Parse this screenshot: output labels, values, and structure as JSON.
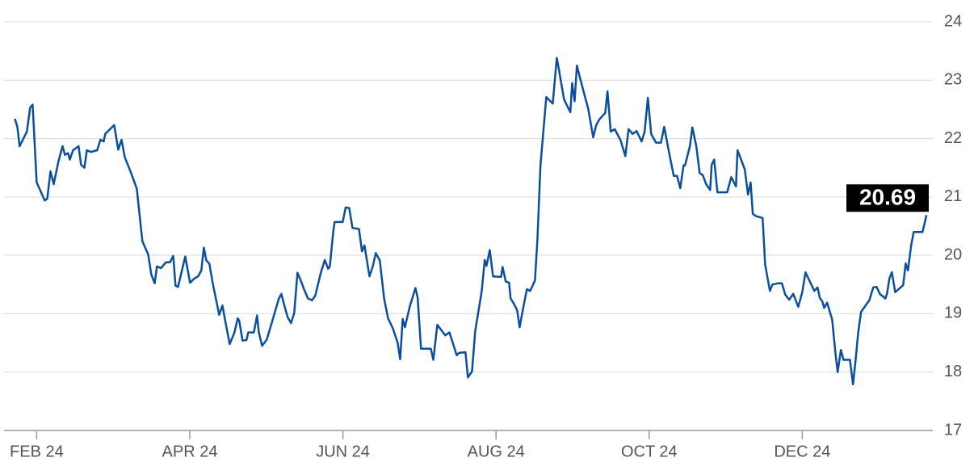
{
  "chart_data": {
    "type": "line",
    "x": [
      -8.7,
      -7.7,
      -6.8,
      -3.9,
      -2.6,
      -1.6,
      0,
      3.2,
      4.2,
      5.5,
      6.8,
      8.7,
      10.3,
      11.3,
      12.5,
      13.2,
      14.5,
      16.7,
      17.7,
      19,
      20,
      21.6,
      24.1,
      25.4,
      26.7,
      27.3,
      30.9,
      32.5,
      33.8,
      35.1,
      37.6,
      39.9,
      42.1,
      44.4,
      45.7,
      47,
      47.9,
      49.5,
      51.5,
      53.1,
      54.4,
      55.3,
      56.3,
      59.2,
      61.1,
      62.7,
      64.3,
      65.6,
      66.6,
      67.6,
      68.8,
      70.1,
      72.7,
      74,
      75.3,
      76.9,
      78.8,
      80.1,
      80.7,
      82,
      83.6,
      84.3,
      86.5,
      87.8,
      88.5,
      89.8,
      91.7,
      94.3,
      96.5,
      97.5,
      98.8,
      100,
      101.3,
      102.6,
      103.9,
      105.2,
      106.5,
      108.1,
      109.7,
      111,
      113.2,
      114.8,
      116.1,
      116.8,
      118.1,
      118.7,
      121.9,
      123.1,
      124.5,
      125.8,
      128.4,
      129.6,
      130.6,
      132.6,
      133.9,
      135.1,
      136.7,
      138.4,
      140,
      141.9,
      143.8,
      144.8,
      145.8,
      146.7,
      148.6,
      150.9,
      151.8,
      153.1,
      155.1,
      157,
      158,
      159.6,
      161.2,
      162.8,
      164.4,
      165.7,
      167.3,
      168.3,
      170.8,
      171.8,
      173.4,
      174.7,
      177.3,
      178.5,
      179.2,
      180.5,
      181.8,
      185,
      185.6,
      186.9,
      188.2,
      188.8,
      190.1,
      191.4,
      192.4,
      194,
      195.3,
      196.6,
      198.5,
      199.5,
      200.7,
      203,
      205.6,
      207.2,
      207.8,
      208.8,
      210.1,
      212.6,
      213.3,
      214.3,
      215.2,
      216.5,
      219.7,
      221.7,
      222.9,
      224.2,
      226.5,
      227.4,
      228.7,
      230.3,
      232.6,
      234.5,
      235.8,
      237.4,
      239,
      241,
      242.2,
      243.5,
      244.8,
      246.7,
      248.7,
      250,
      251.9,
      253.8,
      255.1,
      256.4,
      257.7,
      258.3,
      260.3,
      261.2,
      262.8,
      264.1,
      265.4,
      266.7,
      268.3,
      268.9,
      269.9,
      271.2,
      273.8,
      275.1,
      276.7,
      278.6,
      279.2,
      280.8,
      282.1,
      283.4,
      284.4,
      285.3,
      286.6,
      289.2,
      290.2,
      292.1,
      293.1,
      295.3,
      296.9,
      298.2,
      299.8,
      301.4,
      303.4,
      305,
      306.3,
      307.9,
      309.8,
      311.1,
      312,
      313,
      313.7,
      314.9,
      316.9,
      318.2,
      319.1,
      320.4,
      321.4,
      324,
      325.2,
      326.2,
      327.2,
      328.4,
      331.7,
      333.3,
      334.6,
      335.9,
      338.1,
      338.8,
      339.7,
      340.7,
      342,
      344.2,
      345.2,
      346.2,
      347.1,
      348.4,
      349.4,
      351.6,
      352.9,
      354.5
    ],
    "values": [
      22.34,
      22.2,
      21.87,
      22.12,
      22.53,
      22.58,
      21.25,
      20.94,
      20.97,
      21.44,
      21.22,
      21.61,
      21.87,
      21.72,
      21.75,
      21.64,
      21.8,
      21.87,
      21.55,
      21.5,
      21.8,
      21.77,
      21.8,
      21.98,
      21.95,
      22.08,
      22.23,
      21.81,
      21.98,
      21.68,
      21.41,
      21.14,
      20.24,
      20.02,
      19.67,
      19.52,
      19.81,
      19.78,
      19.88,
      19.88,
      19.99,
      19.48,
      19.46,
      19.98,
      19.53,
      19.6,
      19.64,
      19.74,
      20.13,
      19.91,
      19.86,
      19.53,
      18.98,
      19.14,
      18.84,
      18.48,
      18.68,
      18.92,
      18.88,
      18.54,
      18.55,
      18.68,
      18.68,
      18.97,
      18.68,
      18.45,
      18.56,
      18.94,
      19.26,
      19.34,
      19.12,
      18.94,
      18.84,
      19.01,
      19.7,
      19.57,
      19.42,
      19.26,
      19.23,
      19.31,
      19.7,
      19.92,
      19.77,
      19.81,
      20.39,
      20.57,
      20.57,
      20.82,
      20.81,
      20.47,
      20.45,
      20.07,
      20.17,
      19.64,
      19.81,
      20.04,
      19.91,
      19.26,
      18.92,
      18.75,
      18.5,
      18.22,
      18.91,
      18.77,
      19.12,
      19.44,
      19.27,
      18.4,
      18.4,
      18.4,
      18.21,
      18.81,
      18.72,
      18.63,
      18.68,
      18.51,
      18.29,
      18.33,
      18.34,
      17.91,
      18.01,
      18.7,
      19.39,
      19.92,
      19.82,
      20.09,
      19.64,
      19.63,
      19.8,
      19.55,
      19.53,
      19.26,
      19.17,
      19.06,
      18.77,
      19.14,
      19.42,
      19.39,
      19.57,
      20.29,
      21.54,
      22.71,
      22.6,
      23.38,
      23.24,
      22.99,
      22.67,
      22.45,
      22.95,
      22.64,
      23.25,
      23.03,
      22.51,
      22.02,
      22.23,
      22.33,
      22.44,
      22.81,
      22.12,
      22.16,
      21.97,
      21.7,
      22.16,
      22.08,
      22.13,
      21.95,
      22.12,
      22.7,
      22.08,
      21.93,
      21.93,
      22.2,
      21.77,
      21.36,
      21.36,
      21.15,
      21.54,
      21.54,
      21.88,
      22.19,
      21.87,
      21.41,
      21.37,
      21.22,
      21.12,
      21.55,
      21.64,
      21.08,
      21.08,
      21.08,
      21.34,
      21.18,
      21.8,
      21.62,
      21.47,
      21.04,
      21.25,
      20.71,
      20.67,
      20.64,
      19.84,
      19.39,
      19.5,
      19.52,
      19.52,
      19.33,
      19.24,
      19.34,
      19.12,
      19.37,
      19.71,
      19.56,
      19.39,
      19.45,
      19.27,
      19.21,
      19.1,
      19.19,
      18.9,
      18.33,
      18,
      18.38,
      18.21,
      18.21,
      17.79,
      18.19,
      18.65,
      19.03,
      19.23,
      19.45,
      19.46,
      19.34,
      19.26,
      19.35,
      19.6,
      19.71,
      19.37,
      19.45,
      19.49,
      19.86,
      19.74,
      20.18,
      20.4,
      20.4,
      20.4,
      20.69
    ],
    "color": "#0b4f9c",
    "last_label": "20.69",
    "xlim": [
      -13,
      357
    ],
    "xticks": [
      {
        "value": 0,
        "label": "FEB 24"
      },
      {
        "value": 61,
        "label": "APR 24"
      },
      {
        "value": 122,
        "label": "JUN 24"
      },
      {
        "value": 183,
        "label": "AUG 24"
      },
      {
        "value": 244,
        "label": "OCT 24"
      },
      {
        "value": 305,
        "label": "DEC 24"
      }
    ],
    "ylim": [
      17,
      24
    ],
    "yticks": [
      17,
      18,
      19,
      20,
      21,
      22,
      23,
      24
    ],
    "grid": true
  }
}
